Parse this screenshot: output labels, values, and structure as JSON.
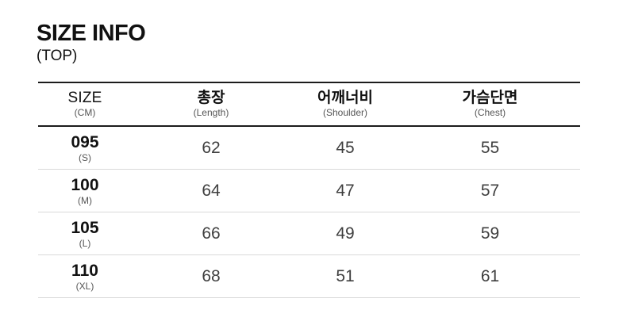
{
  "page": {
    "title": "SIZE INFO",
    "subtitle": "(TOP)"
  },
  "table": {
    "columns": [
      {
        "label": "SIZE",
        "sublabel": "(CM)"
      },
      {
        "label": "총장",
        "sublabel": "(Length)"
      },
      {
        "label": "어깨너비",
        "sublabel": "(Shoulder)"
      },
      {
        "label": "가슴단면",
        "sublabel": "(Chest)"
      }
    ],
    "rows": [
      {
        "size": "095",
        "size_label": "(S)",
        "length": "62",
        "shoulder": "45",
        "chest": "55"
      },
      {
        "size": "100",
        "size_label": "(M)",
        "length": "64",
        "shoulder": "47",
        "chest": "57"
      },
      {
        "size": "105",
        "size_label": "(L)",
        "length": "66",
        "shoulder": "49",
        "chest": "59"
      },
      {
        "size": "110",
        "size_label": "(XL)",
        "length": "68",
        "shoulder": "51",
        "chest": "61"
      }
    ]
  },
  "colors": {
    "background": "#ffffff",
    "rule_dark": "#1c1c1c",
    "rule_light": "#d9d9d9",
    "text_primary": "#111111",
    "text_value": "#3f3f3f",
    "text_sublabel": "#555555"
  }
}
